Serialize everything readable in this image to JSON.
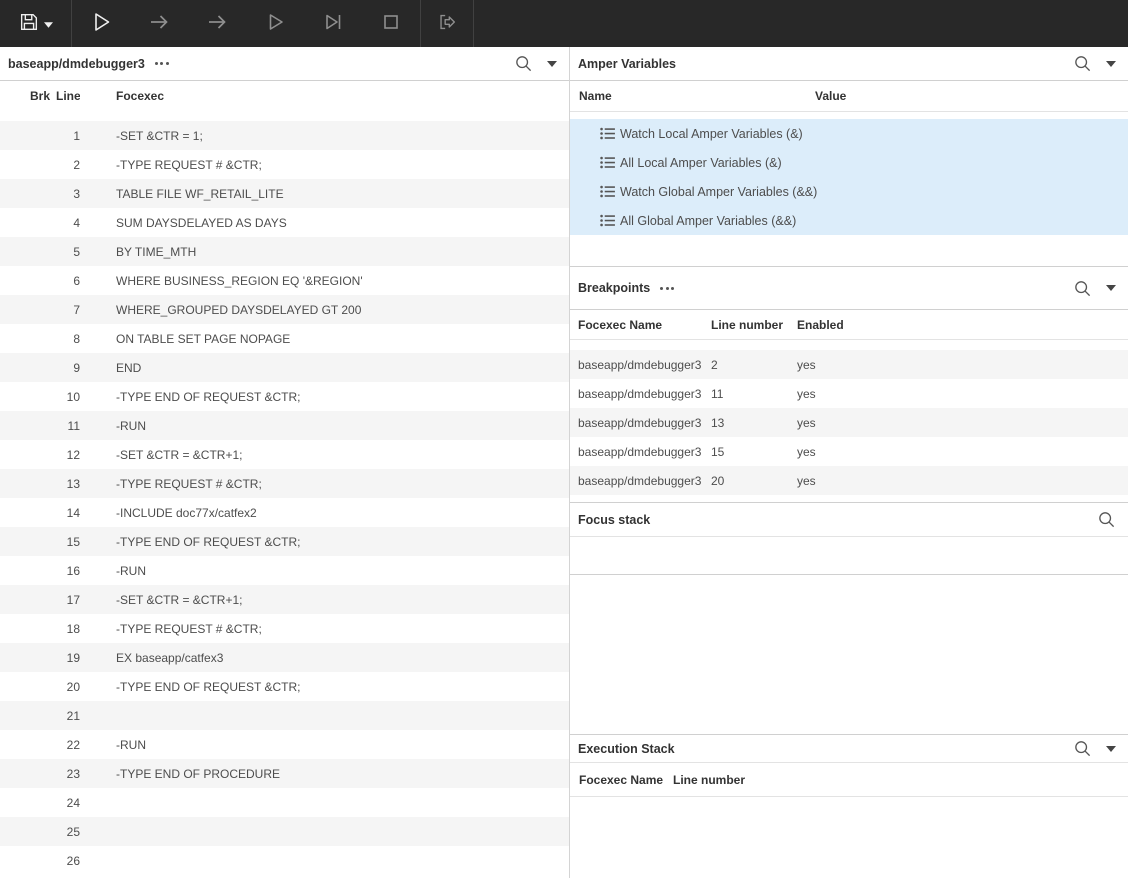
{
  "toolbar": {
    "buttons": [
      {
        "name": "save",
        "icon": "save-icon",
        "enabled": true,
        "has_caret": true
      },
      {
        "name": "run",
        "icon": "play-icon",
        "enabled": true
      },
      {
        "name": "step",
        "icon": "arrow-right-icon",
        "enabled": false
      },
      {
        "name": "step-over",
        "icon": "arrow-right-icon",
        "enabled": false
      },
      {
        "name": "resume",
        "icon": "play-outline-icon",
        "enabled": false
      },
      {
        "name": "run-to-end",
        "icon": "skip-to-end-icon",
        "enabled": false
      },
      {
        "name": "stop",
        "icon": "stop-icon",
        "enabled": false
      },
      {
        "name": "exit-debug",
        "icon": "sign-out-icon",
        "enabled": false
      }
    ]
  },
  "left_panel": {
    "title": "baseapp/dmdebugger3",
    "menu_icon": "ellipsis-icon",
    "columns": [
      "Brk",
      "Line",
      "Focexec"
    ],
    "rows": [
      {
        "line": 1,
        "text": "-SET &CTR = 1;",
        "breakpoint": false
      },
      {
        "line": 2,
        "text": "-TYPE REQUEST # &CTR;",
        "breakpoint": true
      },
      {
        "line": 3,
        "text": "TABLE FILE WF_RETAIL_LITE",
        "breakpoint": false
      },
      {
        "line": 4,
        "text": "SUM DAYSDELAYED AS DAYS",
        "breakpoint": false
      },
      {
        "line": 5,
        "text": "BY TIME_MTH",
        "breakpoint": false
      },
      {
        "line": 6,
        "text": "WHERE BUSINESS_REGION EQ '&REGION'",
        "breakpoint": false
      },
      {
        "line": 7,
        "text": "WHERE_GROUPED DAYSDELAYED GT 200",
        "breakpoint": false
      },
      {
        "line": 8,
        "text": "ON TABLE SET PAGE NOPAGE",
        "breakpoint": false
      },
      {
        "line": 9,
        "text": "END",
        "breakpoint": false
      },
      {
        "line": 10,
        "text": "-TYPE END OF REQUEST &CTR;",
        "breakpoint": false
      },
      {
        "line": 11,
        "text": "-RUN",
        "breakpoint": true
      },
      {
        "line": 12,
        "text": "-SET &CTR = &CTR+1;",
        "breakpoint": false
      },
      {
        "line": 13,
        "text": "-TYPE REQUEST # &CTR;",
        "breakpoint": true
      },
      {
        "line": 14,
        "text": "-INCLUDE doc77x/catfex2",
        "breakpoint": false
      },
      {
        "line": 15,
        "text": "-TYPE END OF REQUEST &CTR;",
        "breakpoint": true
      },
      {
        "line": 16,
        "text": "-RUN",
        "breakpoint": false
      },
      {
        "line": 17,
        "text": "-SET &CTR = &CTR+1;",
        "breakpoint": false
      },
      {
        "line": 18,
        "text": "-TYPE REQUEST # &CTR;",
        "breakpoint": false
      },
      {
        "line": 19,
        "text": "EX baseapp/catfex3",
        "breakpoint": false
      },
      {
        "line": 20,
        "text": "-TYPE END OF REQUEST &CTR;",
        "breakpoint": true
      },
      {
        "line": 21,
        "text": "",
        "breakpoint": false
      },
      {
        "line": 22,
        "text": "-RUN",
        "breakpoint": false
      },
      {
        "line": 23,
        "text": "-TYPE END OF PROCEDURE",
        "breakpoint": false
      },
      {
        "line": 24,
        "text": "",
        "breakpoint": false
      },
      {
        "line": 25,
        "text": "",
        "breakpoint": false
      },
      {
        "line": 26,
        "text": "",
        "breakpoint": false
      }
    ]
  },
  "right_panel": {
    "amper_variables": {
      "title": "Amper Variables",
      "columns": [
        "Name",
        "Value"
      ],
      "groups": [
        "Watch Local Amper Variables (&)",
        "All Local Amper Variables (&)",
        "Watch Global Amper Variables (&&)",
        "All Global Amper Variables (&&)"
      ]
    },
    "breakpoints": {
      "title": "Breakpoints",
      "menu_icon": "ellipsis-icon",
      "columns": [
        "Focexec Name",
        "Line number",
        "Enabled"
      ],
      "rows": [
        {
          "focexec": "baseapp/dmdebugger3",
          "line": "2",
          "enabled": "yes"
        },
        {
          "focexec": "baseapp/dmdebugger3",
          "line": "11",
          "enabled": "yes"
        },
        {
          "focexec": "baseapp/dmdebugger3",
          "line": "13",
          "enabled": "yes"
        },
        {
          "focexec": "baseapp/dmdebugger3",
          "line": "15",
          "enabled": "yes"
        },
        {
          "focexec": "baseapp/dmdebugger3",
          "line": "20",
          "enabled": "yes"
        }
      ]
    },
    "focus_stack": {
      "title": "Focus stack"
    },
    "execution_stack": {
      "title": "Execution Stack",
      "columns": [
        "Focexec Name",
        "Line number"
      ]
    }
  },
  "colors": {
    "toolbar_bg": "#282828",
    "selection_blue": "#dcedfa",
    "row_stripe": "#f5f5f5",
    "panel_border": "#d4d4d4",
    "icon_enabled": "#f0f0f0",
    "icon_disabled": "#8f8f8f",
    "text": "#4d4d4d",
    "heading_text": "#333333",
    "breakpoint_dot": "#3a3a3a"
  }
}
